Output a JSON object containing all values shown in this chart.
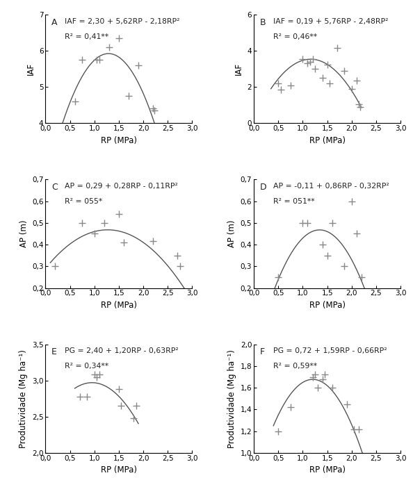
{
  "panels": [
    {
      "label": "A",
      "equation": "IAF = 2,30 + 5,62RP - 2,18RP²",
      "r2": "R² = 0,41**",
      "coeffs": [
        2.3,
        5.62,
        -2.18
      ],
      "x_data": [
        0.6,
        0.75,
        1.05,
        1.1,
        1.3,
        1.5,
        1.7,
        1.9,
        2.2,
        2.22
      ],
      "y_data": [
        4.6,
        5.75,
        5.75,
        5.75,
        6.1,
        6.35,
        4.75,
        5.6,
        4.4,
        4.35
      ],
      "ylabel": "IAF",
      "xlabel": "RP (MPa)",
      "ylim": [
        4.0,
        7.0
      ],
      "ytick_vals": [
        4,
        5,
        6,
        7
      ],
      "ytick_labels": [
        "4",
        "5",
        "6",
        "7"
      ],
      "xlim": [
        0.0,
        3.0
      ],
      "xtick_vals": [
        0.0,
        0.5,
        1.0,
        1.5,
        2.0,
        2.5,
        3.0
      ],
      "xtick_labels": [
        "0,0",
        "0,5",
        "1,0",
        "1,5",
        "2,0",
        "2,5",
        "3,0"
      ],
      "curve_xrange": [
        0.35,
        2.45
      ]
    },
    {
      "label": "B",
      "equation": "IAF = 0,19 + 5,76RP - 2,48RP²",
      "r2": "R² = 0,46**",
      "coeffs": [
        0.19,
        5.76,
        -2.48
      ],
      "x_data": [
        0.5,
        0.55,
        0.75,
        1.0,
        1.1,
        1.15,
        1.2,
        1.25,
        1.4,
        1.5,
        1.55,
        1.7,
        1.85,
        2.0,
        2.1,
        2.15,
        2.18
      ],
      "y_data": [
        2.2,
        1.85,
        2.1,
        3.55,
        3.3,
        3.4,
        3.55,
        3.0,
        2.5,
        3.25,
        2.2,
        4.15,
        2.9,
        1.9,
        2.35,
        1.05,
        0.9
      ],
      "ylabel": "IAF",
      "xlabel": "RP (MPa)",
      "ylim": [
        0.0,
        6.0
      ],
      "ytick_vals": [
        0,
        2,
        4,
        6
      ],
      "ytick_labels": [
        "0",
        "2",
        "4",
        "6"
      ],
      "xlim": [
        0.0,
        3.0
      ],
      "xtick_vals": [
        0.0,
        0.5,
        1.0,
        1.5,
        2.0,
        2.5,
        3.0
      ],
      "xtick_labels": [
        "0,0",
        "0,5",
        "1,0",
        "1,5",
        "2,0",
        "2,5",
        "3,0"
      ],
      "curve_xrange": [
        0.35,
        2.2
      ]
    },
    {
      "label": "C",
      "equation": "AP = 0,29 + 0,28RP - 0,11RP²",
      "r2": "R² = 055*",
      "coeffs": [
        0.29,
        0.28,
        -0.11
      ],
      "x_data": [
        0.2,
        0.75,
        1.0,
        1.2,
        1.5,
        1.6,
        2.2,
        2.7,
        2.75
      ],
      "y_data": [
        0.3,
        0.5,
        0.45,
        0.5,
        0.54,
        0.41,
        0.415,
        0.35,
        0.3
      ],
      "ylabel": "AP (m)",
      "xlabel": "RP (MPa)",
      "ylim": [
        0.2,
        0.7
      ],
      "ytick_vals": [
        0.2,
        0.3,
        0.4,
        0.5,
        0.6,
        0.7
      ],
      "ytick_labels": [
        "0,2",
        "0,3",
        "0,4",
        "0,5",
        "0,6",
        "0,7"
      ],
      "xlim": [
        0.0,
        3.0
      ],
      "xtick_vals": [
        0.0,
        0.5,
        1.0,
        1.5,
        2.0,
        2.5,
        3.0
      ],
      "xtick_labels": [
        "0,0",
        "0,5",
        "1,0",
        "1,5",
        "2,0",
        "2,5",
        "3,0"
      ],
      "curve_xrange": [
        0.1,
        3.0
      ]
    },
    {
      "label": "D",
      "equation": "AP = -0,11 + 0,86RP - 0,32RP²",
      "r2": "R² = 051**",
      "coeffs": [
        -0.11,
        0.86,
        -0.32
      ],
      "x_data": [
        0.5,
        1.0,
        1.1,
        1.4,
        1.5,
        1.6,
        1.85,
        2.0,
        2.1,
        2.2
      ],
      "y_data": [
        0.25,
        0.5,
        0.5,
        0.4,
        0.35,
        0.5,
        0.3,
        0.6,
        0.45,
        0.25
      ],
      "ylabel": "AP (m)",
      "xlabel": "RP (MPa)",
      "ylim": [
        0.2,
        0.7
      ],
      "ytick_vals": [
        0.2,
        0.3,
        0.4,
        0.5,
        0.6,
        0.7
      ],
      "ytick_labels": [
        "0,2",
        "0,3",
        "0,4",
        "0,5",
        "0,6",
        "0,7"
      ],
      "xlim": [
        0.0,
        3.0
      ],
      "xtick_vals": [
        0.0,
        0.5,
        1.0,
        1.5,
        2.0,
        2.5,
        3.0
      ],
      "xtick_labels": [
        "0,0",
        "0,5",
        "1,0",
        "1,5",
        "2,0",
        "2,5",
        "3,0"
      ],
      "curve_xrange": [
        0.3,
        2.5
      ]
    },
    {
      "label": "E",
      "equation": "PG = 2,40 + 1,20RP - 0,63RP²",
      "r2": "R² = 0,34**",
      "coeffs": [
        2.4,
        1.2,
        -0.63
      ],
      "x_data": [
        0.7,
        0.85,
        1.0,
        1.05,
        1.1,
        1.5,
        1.55,
        1.8,
        1.85
      ],
      "y_data": [
        2.78,
        2.78,
        3.08,
        3.05,
        3.08,
        2.88,
        2.65,
        2.48,
        2.65
      ],
      "ylabel": "Produtividade (Mg ha⁻¹)",
      "xlabel": "RP (MPa)",
      "ylim": [
        2.0,
        3.5
      ],
      "ytick_vals": [
        2.0,
        2.5,
        3.0,
        3.5
      ],
      "ytick_labels": [
        "2,0",
        "2,5",
        "3,0",
        "3,5"
      ],
      "xlim": [
        0.0,
        3.0
      ],
      "xtick_vals": [
        0.0,
        0.5,
        1.0,
        1.5,
        2.0,
        2.5,
        3.0
      ],
      "xtick_labels": [
        "0,0",
        "0,5",
        "1,0",
        "1,5",
        "2,0",
        "2,5",
        "3,0"
      ],
      "curve_xrange": [
        0.6,
        1.9
      ]
    },
    {
      "label": "F",
      "equation": "PG = 0,72 + 1,59RP - 0,66RP²",
      "r2": "R² = 0,59**",
      "coeffs": [
        0.72,
        1.59,
        -0.66
      ],
      "x_data": [
        0.5,
        0.75,
        1.2,
        1.25,
        1.3,
        1.4,
        1.45,
        1.6,
        1.9,
        2.05,
        2.15
      ],
      "y_data": [
        1.2,
        1.42,
        1.7,
        1.72,
        1.6,
        1.68,
        1.72,
        1.6,
        1.45,
        1.22,
        1.22
      ],
      "ylabel": "Produtividade (Mg ha⁻¹)",
      "xlabel": "RP (MPa)",
      "ylim": [
        1.0,
        2.0
      ],
      "ytick_vals": [
        1.0,
        1.2,
        1.4,
        1.6,
        1.8,
        2.0
      ],
      "ytick_labels": [
        "1,0",
        "1,2",
        "1,4",
        "1,6",
        "1,8",
        "2,0"
      ],
      "xlim": [
        0.0,
        3.0
      ],
      "xtick_vals": [
        0.0,
        0.5,
        1.0,
        1.5,
        2.0,
        2.5,
        3.0
      ],
      "xtick_labels": [
        "0,0",
        "0,5",
        "1,0",
        "1,5",
        "2,0",
        "2,5",
        "3,0"
      ],
      "curve_xrange": [
        0.4,
        2.25
      ]
    }
  ],
  "fig_width": 5.94,
  "fig_height": 7.01,
  "dpi": 100,
  "marker": "+",
  "marker_size": 7,
  "marker_color": "#888888",
  "curve_color": "#555555",
  "text_color": "#222222",
  "bg_color": "#ffffff",
  "label_fontsize": 9,
  "tick_fontsize": 7.5,
  "eq_fontsize": 7.8,
  "ylabel_fontsize": 8.5,
  "xlabel_fontsize": 8.5
}
